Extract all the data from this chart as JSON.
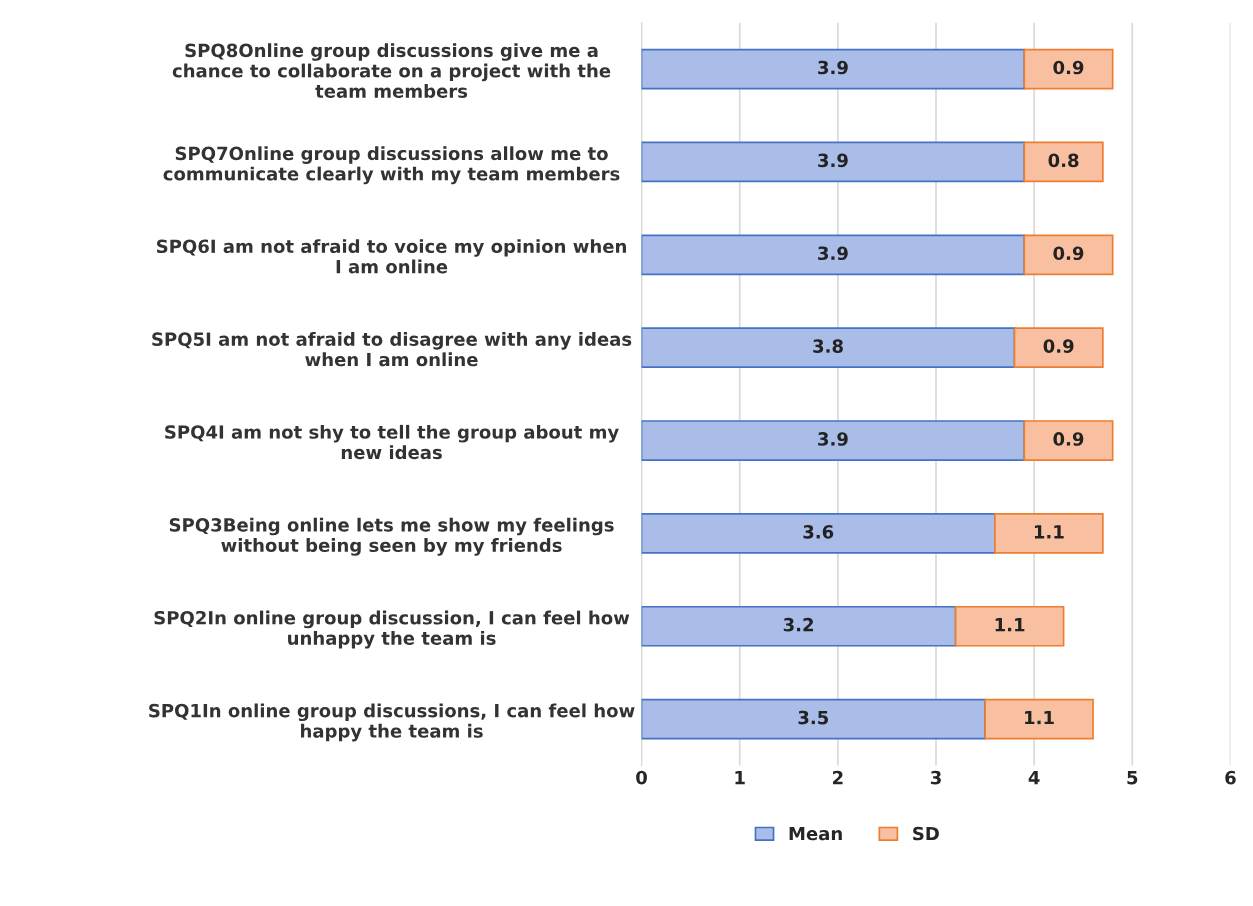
{
  "chart_data": {
    "type": "bar",
    "orientation": "horizontal",
    "stacked": true,
    "categories": [
      "SPQ8Online group discussions give me a\nchance to collaborate on a project with the\nteam members",
      "SPQ7Online group discussions allow me to\ncommunicate clearly with my team members",
      "SPQ6I am not afraid to voice my opinion when\nI am online",
      "SPQ5I am not afraid to disagree with any ideas\nwhen I am online",
      "SPQ4I am not shy to tell the group about my\nnew ideas",
      "SPQ3Being online lets me show my feelings\nwithout being seen by my friends",
      "SPQ2In online group discussion, I can feel how\nunhappy the team is",
      "SPQ1In online group discussions, I can feel how\nhappy the team is"
    ],
    "series": [
      {
        "name": "Mean",
        "color": "#a9bde8",
        "values": [
          3.9,
          3.9,
          3.9,
          3.8,
          3.9,
          3.6,
          3.2,
          3.5
        ]
      },
      {
        "name": "SD",
        "color": "#f8c0a0",
        "values": [
          0.9,
          0.8,
          0.9,
          0.9,
          0.9,
          1.1,
          1.1,
          1.1
        ]
      }
    ],
    "xlim": [
      0,
      6
    ],
    "xticks": [
      0,
      1,
      2,
      3,
      4,
      5,
      6
    ],
    "grid": "x",
    "legend": "bottom",
    "data_labels": true
  }
}
